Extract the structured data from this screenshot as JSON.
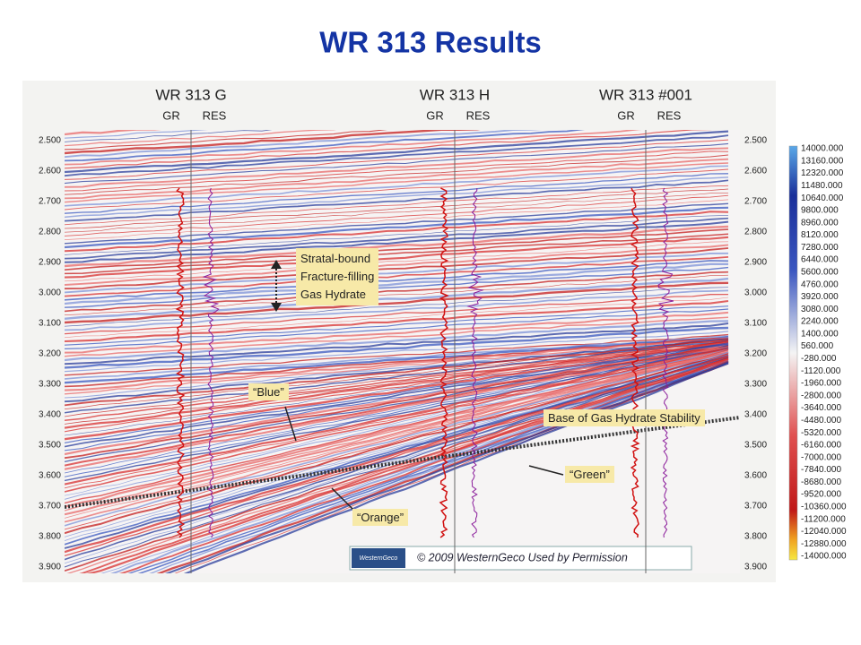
{
  "title": "WR 313 Results",
  "wells": [
    {
      "name": "WR 313 G",
      "logs": [
        "GR",
        "RES"
      ]
    },
    {
      "name": "WR 313 H",
      "logs": [
        "GR",
        "RES"
      ]
    },
    {
      "name": "WR 313  #001",
      "logs": [
        "GR",
        "RES"
      ]
    }
  ],
  "depth_labels": [
    "2.500",
    "2.600",
    "2.700",
    "2.800",
    "2.900",
    "3.000",
    "3.100",
    "3.200",
    "3.300",
    "3.400",
    "3.500",
    "3.600",
    "3.700",
    "3.800",
    "3.900"
  ],
  "colorbar_labels": [
    "14000.000",
    "13160.000",
    "12320.000",
    "11480.000",
    "10640.000",
    "9800.000",
    "8960.000",
    "8120.000",
    "7280.000",
    "6440.000",
    "5600.000",
    "4760.000",
    "3920.000",
    "3080.000",
    "2240.000",
    "1400.000",
    "560.000",
    "-280.000",
    "-1120.000",
    "-1960.000",
    "-2800.000",
    "-3640.000",
    "-4480.000",
    "-5320.000",
    "-6160.000",
    "-7000.000",
    "-7840.000",
    "-8680.000",
    "-9520.000",
    "-10360.000",
    "-11200.000",
    "-12040.000",
    "-12880.000",
    "-14000.000"
  ],
  "annotations": {
    "stratal": [
      "Stratal-bound",
      "Fracture-filling",
      "Gas Hydrate"
    ],
    "blue": "“Blue”",
    "base": "Base of Gas Hydrate Stability",
    "green": "“Green”",
    "orange": "“Orange”"
  },
  "logo": "WesternGeco",
  "copyright": "© 2009  WesternGeco    Used by Permission"
}
